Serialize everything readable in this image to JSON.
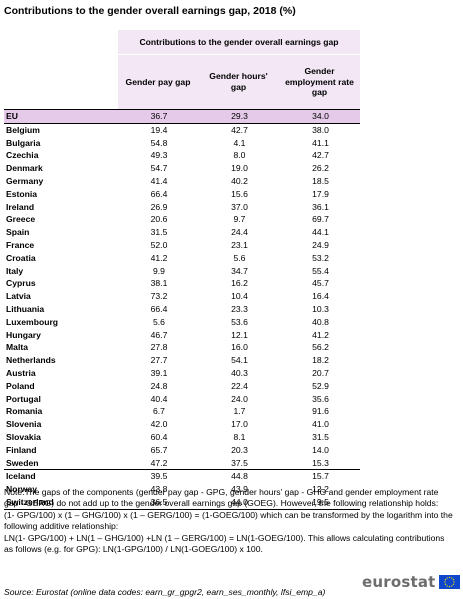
{
  "title": "Contributions to the gender overall earnings gap, 2018 (%)",
  "table": {
    "group_header": "Contributions to the gender overall earnings gap",
    "columns": [
      "Gender pay gap",
      "Gender hours' gap",
      "Gender employment rate gap"
    ],
    "rows": [
      {
        "country": "EU",
        "gpg": "36.7",
        "ghg": "29.3",
        "gerg": "34.0"
      },
      {
        "country": "Belgium",
        "gpg": "19.4",
        "ghg": "42.7",
        "gerg": "38.0"
      },
      {
        "country": "Bulgaria",
        "gpg": "54.8",
        "ghg": "4.1",
        "gerg": "41.1"
      },
      {
        "country": "Czechia",
        "gpg": "49.3",
        "ghg": "8.0",
        "gerg": "42.7"
      },
      {
        "country": "Denmark",
        "gpg": "54.7",
        "ghg": "19.0",
        "gerg": "26.2"
      },
      {
        "country": "Germany",
        "gpg": "41.4",
        "ghg": "40.2",
        "gerg": "18.5"
      },
      {
        "country": "Estonia",
        "gpg": "66.4",
        "ghg": "15.6",
        "gerg": "17.9"
      },
      {
        "country": "Ireland",
        "gpg": "26.9",
        "ghg": "37.0",
        "gerg": "36.1"
      },
      {
        "country": "Greece",
        "gpg": "20.6",
        "ghg": "9.7",
        "gerg": "69.7"
      },
      {
        "country": "Spain",
        "gpg": "31.5",
        "ghg": "24.4",
        "gerg": "44.1"
      },
      {
        "country": "France",
        "gpg": "52.0",
        "ghg": "23.1",
        "gerg": "24.9"
      },
      {
        "country": "Croatia",
        "gpg": "41.2",
        "ghg": "5.6",
        "gerg": "53.2"
      },
      {
        "country": "Italy",
        "gpg": "9.9",
        "ghg": "34.7",
        "gerg": "55.4"
      },
      {
        "country": "Cyprus",
        "gpg": "38.1",
        "ghg": "16.2",
        "gerg": "45.7"
      },
      {
        "country": "Latvia",
        "gpg": "73.2",
        "ghg": "10.4",
        "gerg": "16.4"
      },
      {
        "country": "Lithuania",
        "gpg": "66.4",
        "ghg": "23.3",
        "gerg": "10.3"
      },
      {
        "country": "Luxembourg",
        "gpg": "5.6",
        "ghg": "53.6",
        "gerg": "40.8"
      },
      {
        "country": "Hungary",
        "gpg": "46.7",
        "ghg": "12.1",
        "gerg": "41.2"
      },
      {
        "country": "Malta",
        "gpg": "27.8",
        "ghg": "16.0",
        "gerg": "56.2"
      },
      {
        "country": "Netherlands",
        "gpg": "27.7",
        "ghg": "54.1",
        "gerg": "18.2"
      },
      {
        "country": "Austria",
        "gpg": "39.1",
        "ghg": "40.3",
        "gerg": "20.7"
      },
      {
        "country": "Poland",
        "gpg": "24.8",
        "ghg": "22.4",
        "gerg": "52.9"
      },
      {
        "country": "Portugal",
        "gpg": "40.4",
        "ghg": "24.0",
        "gerg": "35.6"
      },
      {
        "country": "Romania",
        "gpg": "6.7",
        "ghg": "1.7",
        "gerg": "91.6"
      },
      {
        "country": "Slovenia",
        "gpg": "42.0",
        "ghg": "17.0",
        "gerg": "41.0"
      },
      {
        "country": "Slovakia",
        "gpg": "60.4",
        "ghg": "8.1",
        "gerg": "31.5"
      },
      {
        "country": "Finland",
        "gpg": "65.7",
        "ghg": "20.3",
        "gerg": "14.0"
      },
      {
        "country": "Sweden",
        "gpg": "47.2",
        "ghg": "37.5",
        "gerg": "15.3"
      },
      {
        "country": "Iceland",
        "gpg": "39.5",
        "ghg": "44.8",
        "gerg": "15.7"
      },
      {
        "country": "Norway",
        "gpg": "43.8",
        "ghg": "43.9",
        "gerg": "12.2"
      },
      {
        "country": "Switzerland",
        "gpg": "36.5",
        "ghg": "44.0",
        "gerg": "19.5"
      }
    ]
  },
  "note": [
    "Note:The gaps of the components (gender pay gap - GPG, gender hours' gap - GHG and gender employment rate gap - GERG) do not add up to the gender overall earnings gap (GOEG). However, the following relationship holds:",
    "(1- GPG/100)  x  (1 – GHG/100) x (1 – GERG/100) = (1-GOEG/100) which can be transformed by the logarithm into the following additive relationship:",
    " LN(1- GPG/100) + LN(1 – GHG/100) +LN (1 – GERG/100) = LN(1-GOEG/100). This allows calculating contributions as follows (e.g. for GPG): LN(1-GPG/100) / LN(1-GOEG/100) x 100."
  ],
  "source": "Source: Eurostat (online data codes: earn_gr_gpgr2, earn_ses_monthly, lfsi_emp_a)",
  "logo": {
    "text": "eurostat",
    "flag_color": "#0e47cb",
    "star_color": "#ffe600"
  },
  "colors": {
    "header_bg": "#f3e7f6",
    "eu_row_bg": "#e5cbe9"
  }
}
